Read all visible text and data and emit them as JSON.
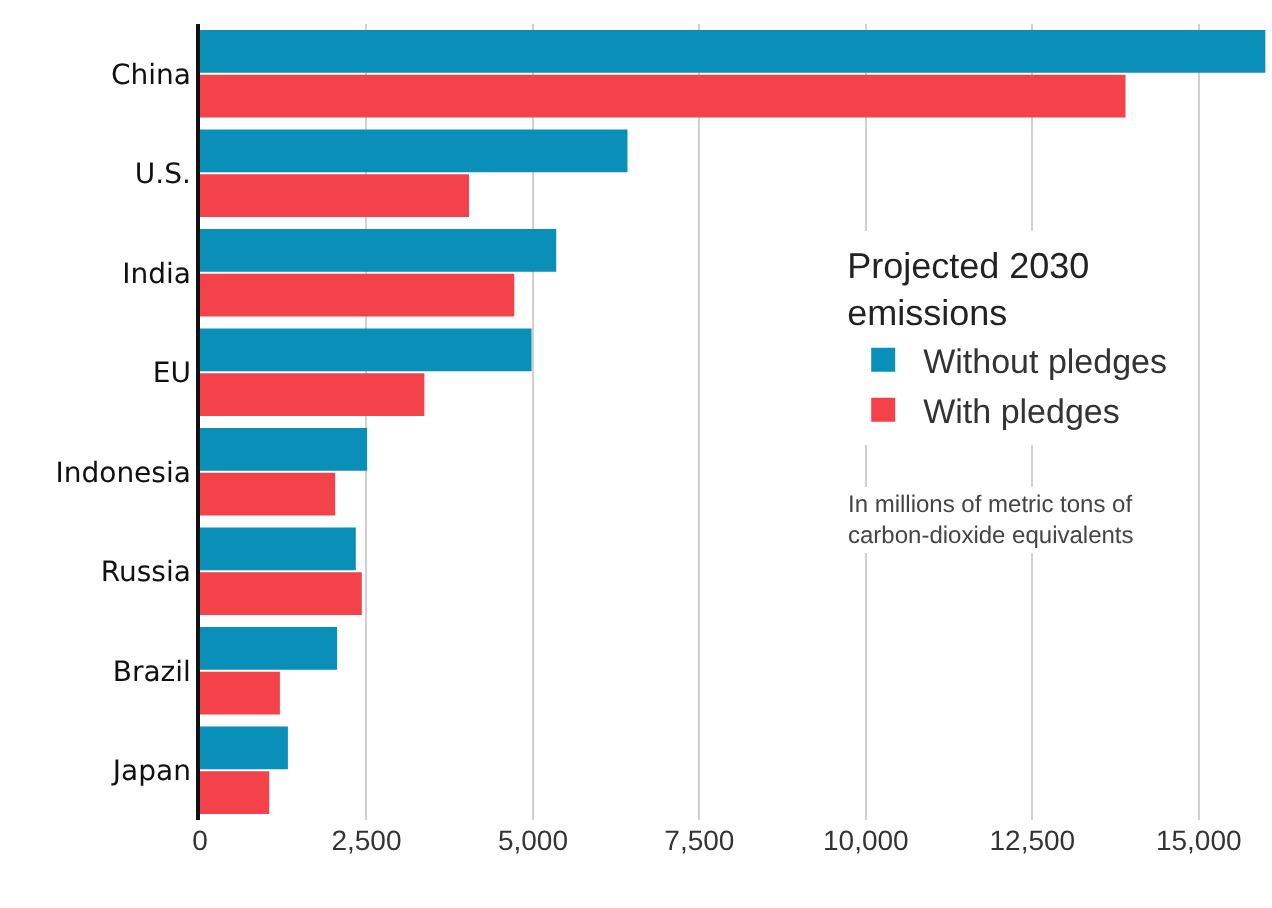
{
  "chart_data": {
    "type": "bar",
    "orientation": "horizontal",
    "categories": [
      "China",
      "U.S.",
      "India",
      "EU",
      "Indonesia",
      "Russia",
      "Brazil",
      "Japan"
    ],
    "series": [
      {
        "name": "Without pledges",
        "color": "#0a8fb8",
        "values": [
          16000,
          6420,
          5350,
          4980,
          2510,
          2340,
          2060,
          1320
        ]
      },
      {
        "name": "With pledges",
        "color": "#f4424a",
        "values": [
          13900,
          4040,
          4720,
          3370,
          2030,
          2430,
          1200,
          1040
        ]
      }
    ],
    "xlim": [
      0,
      16100
    ],
    "xticks": [
      0,
      {
        "value": 2500,
        "label": "2,500"
      },
      {
        "value": 5000,
        "label": "5,000"
      },
      {
        "value": 7500,
        "label": "7,500"
      },
      {
        "value": 10000,
        "label": "10,000"
      },
      {
        "value": 12500,
        "label": "12,500"
      },
      {
        "value": 15000,
        "label": "15,000"
      }
    ],
    "grid": "x",
    "legend": "right",
    "legend_title": "Projected 2030 emissions",
    "annotations": [
      "In millions of metric tons of carbon-dioxide equivalents"
    ]
  }
}
